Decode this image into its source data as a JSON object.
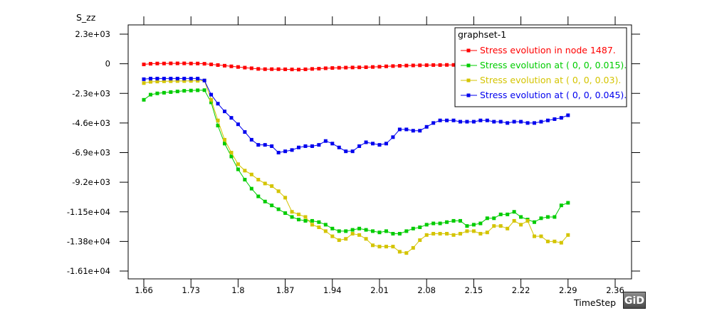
{
  "chart_data": {
    "type": "line",
    "ylabel": "S_zz",
    "xlabel": "TimeStep",
    "xlim": [
      1.66,
      2.36
    ],
    "ylim": [
      -16100,
      2300
    ],
    "x_ticks": [
      1.66,
      1.73,
      1.8,
      1.87,
      1.94,
      2.01,
      2.08,
      2.15,
      2.22,
      2.29,
      2.36
    ],
    "x_tick_labels": [
      "1.66",
      "1.73",
      "1.8",
      "1.87",
      "1.94",
      "2.01",
      "2.08",
      "2.15",
      "2.22",
      "2.29",
      "2.36"
    ],
    "y_ticks": [
      2300,
      0,
      -2300,
      -4600,
      -6900,
      -9200,
      -11500,
      -13800,
      -16100
    ],
    "y_tick_labels": [
      "2.3e+03",
      "0",
      "-2.3e+03",
      "-4.6e+03",
      "-6.9e+03",
      "-9.2e+03",
      "-1.15e+04",
      "-1.38e+04",
      "-1.61e+04"
    ],
    "legend": {
      "title": "graphset-1",
      "position": "top-right"
    },
    "x": [
      1.66,
      1.67,
      1.68,
      1.69,
      1.7,
      1.71,
      1.72,
      1.73,
      1.74,
      1.75,
      1.76,
      1.77,
      1.78,
      1.79,
      1.8,
      1.81,
      1.82,
      1.83,
      1.84,
      1.85,
      1.86,
      1.87,
      1.88,
      1.89,
      1.9,
      1.91,
      1.92,
      1.93,
      1.94,
      1.95,
      1.96,
      1.97,
      1.98,
      1.99,
      2.0,
      2.01,
      2.02,
      2.03,
      2.04,
      2.05,
      2.06,
      2.07,
      2.08,
      2.09,
      2.1,
      2.11,
      2.12,
      2.13,
      2.14,
      2.15,
      2.16,
      2.17,
      2.18,
      2.19,
      2.2,
      2.21,
      2.22,
      2.23,
      2.24,
      2.25,
      2.26,
      2.27,
      2.28,
      2.29
    ],
    "series": [
      {
        "name": "Stress evolution in node 1487.",
        "color": "#ff0000",
        "values": [
          -50,
          0,
          20,
          20,
          30,
          30,
          30,
          20,
          20,
          0,
          -50,
          -100,
          -150,
          -200,
          -250,
          -300,
          -350,
          -400,
          -420,
          -420,
          -420,
          -430,
          -440,
          -450,
          -430,
          -400,
          -380,
          -350,
          -330,
          -310,
          -300,
          -290,
          -280,
          -270,
          -250,
          -230,
          -200,
          -180,
          -160,
          -140,
          -130,
          -120,
          -110,
          -100,
          -100,
          -90,
          -90,
          -80,
          -80,
          -70,
          -70,
          -60,
          -60,
          -50,
          -50,
          -40,
          -40,
          -40,
          -30,
          -30,
          -30,
          -20,
          -20,
          -20
        ]
      },
      {
        "name": "Stress evolution at ( 0, 0, 0.015).",
        "color": "#00cc00",
        "values": [
          -2800,
          -2400,
          -2300,
          -2250,
          -2200,
          -2150,
          -2100,
          -2080,
          -2060,
          -2050,
          -3000,
          -4800,
          -6200,
          -7200,
          -8200,
          -9000,
          -9700,
          -10300,
          -10700,
          -11000,
          -11300,
          -11600,
          -11900,
          -12100,
          -12200,
          -12200,
          -12300,
          -12500,
          -12800,
          -13000,
          -13000,
          -12900,
          -12800,
          -12900,
          -13000,
          -13100,
          -13000,
          -13200,
          -13200,
          -13000,
          -12800,
          -12700,
          -12500,
          -12400,
          -12400,
          -12300,
          -12200,
          -12200,
          -12600,
          -12500,
          -12400,
          -12000,
          -12000,
          -11700,
          -11700,
          -11500,
          -11900,
          -12100,
          -12300,
          -12000,
          -11900,
          -11900,
          -11000,
          -10800
        ]
      },
      {
        "name": "Stress evolution at ( 0, 0, 0.03).",
        "color": "#d4c400",
        "values": [
          -1500,
          -1400,
          -1380,
          -1360,
          -1350,
          -1340,
          -1340,
          -1330,
          -1320,
          -1300,
          -2800,
          -4400,
          -5900,
          -6900,
          -7800,
          -8300,
          -8600,
          -9000,
          -9300,
          -9500,
          -9900,
          -10400,
          -11500,
          -11700,
          -11900,
          -12500,
          -12700,
          -13000,
          -13400,
          -13700,
          -13600,
          -13200,
          -13300,
          -13600,
          -14100,
          -14200,
          -14200,
          -14200,
          -14600,
          -14700,
          -14300,
          -13700,
          -13300,
          -13200,
          -13200,
          -13200,
          -13300,
          -13200,
          -13000,
          -13000,
          -13200,
          -13100,
          -12600,
          -12600,
          -12800,
          -12200,
          -12500,
          -12200,
          -13400,
          -13400,
          -13800,
          -13800,
          -13900,
          -13300
        ]
      },
      {
        "name": "Stress evolution at ( 0, 0, 0.045).",
        "color": "#0000ee",
        "values": [
          -1200,
          -1150,
          -1150,
          -1150,
          -1150,
          -1150,
          -1150,
          -1150,
          -1150,
          -1300,
          -2400,
          -3100,
          -3700,
          -4200,
          -4700,
          -5300,
          -5900,
          -6300,
          -6300,
          -6400,
          -6900,
          -6800,
          -6700,
          -6500,
          -6400,
          -6400,
          -6300,
          -6000,
          -6200,
          -6500,
          -6800,
          -6800,
          -6400,
          -6100,
          -6200,
          -6300,
          -6200,
          -5700,
          -5100,
          -5100,
          -5200,
          -5200,
          -4900,
          -4600,
          -4400,
          -4400,
          -4400,
          -4500,
          -4500,
          -4500,
          -4400,
          -4400,
          -4500,
          -4500,
          -4600,
          -4500,
          -4500,
          -4600,
          -4600,
          -4500,
          -4400,
          -4300,
          -4200,
          -4000
        ]
      }
    ]
  },
  "logo": {
    "text": "GiD"
  }
}
